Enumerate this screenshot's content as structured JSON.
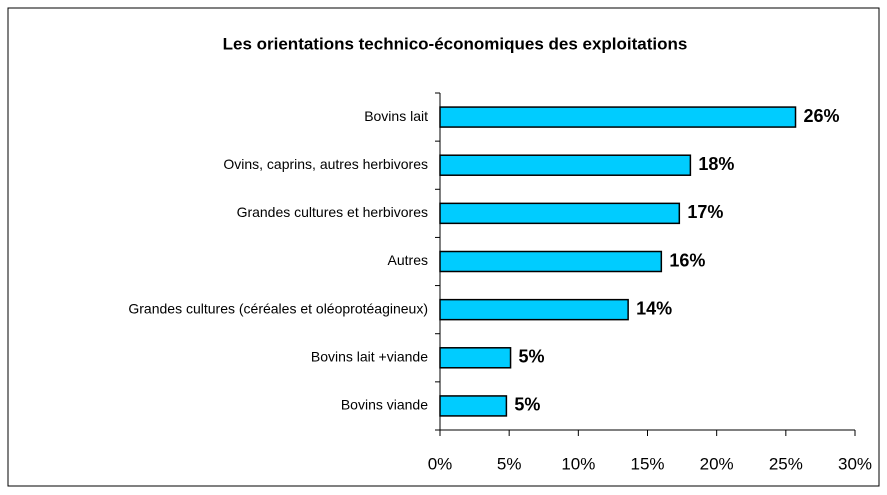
{
  "chart_data": {
    "type": "bar",
    "orientation": "horizontal",
    "title": "Les orientations technico-économiques des exploitations",
    "categories": [
      "Bovins lait",
      "Ovins, caprins, autres herbivores",
      "Grandes cultures et herbivores",
      "Autres",
      "Grandes cultures (céréales et oléoprotéagineux)",
      "Bovins lait +viande",
      "Bovins viande"
    ],
    "values": [
      25.7,
      18.1,
      17.3,
      16.0,
      13.6,
      5.1,
      4.8
    ],
    "value_labels": [
      "26%",
      "18%",
      "17%",
      "16%",
      "14%",
      "5%",
      "5%"
    ],
    "color": "#00ccff",
    "xlim": [
      0,
      30
    ],
    "xticks": [
      {
        "value": 0,
        "label": "0%"
      },
      {
        "value": 5,
        "label": "5%"
      },
      {
        "value": 10,
        "label": "10%"
      },
      {
        "value": 15,
        "label": "15%"
      },
      {
        "value": 20,
        "label": "20%"
      },
      {
        "value": 25,
        "label": "25%"
      },
      {
        "value": 30,
        "label": "30%"
      }
    ],
    "grid": false
  }
}
